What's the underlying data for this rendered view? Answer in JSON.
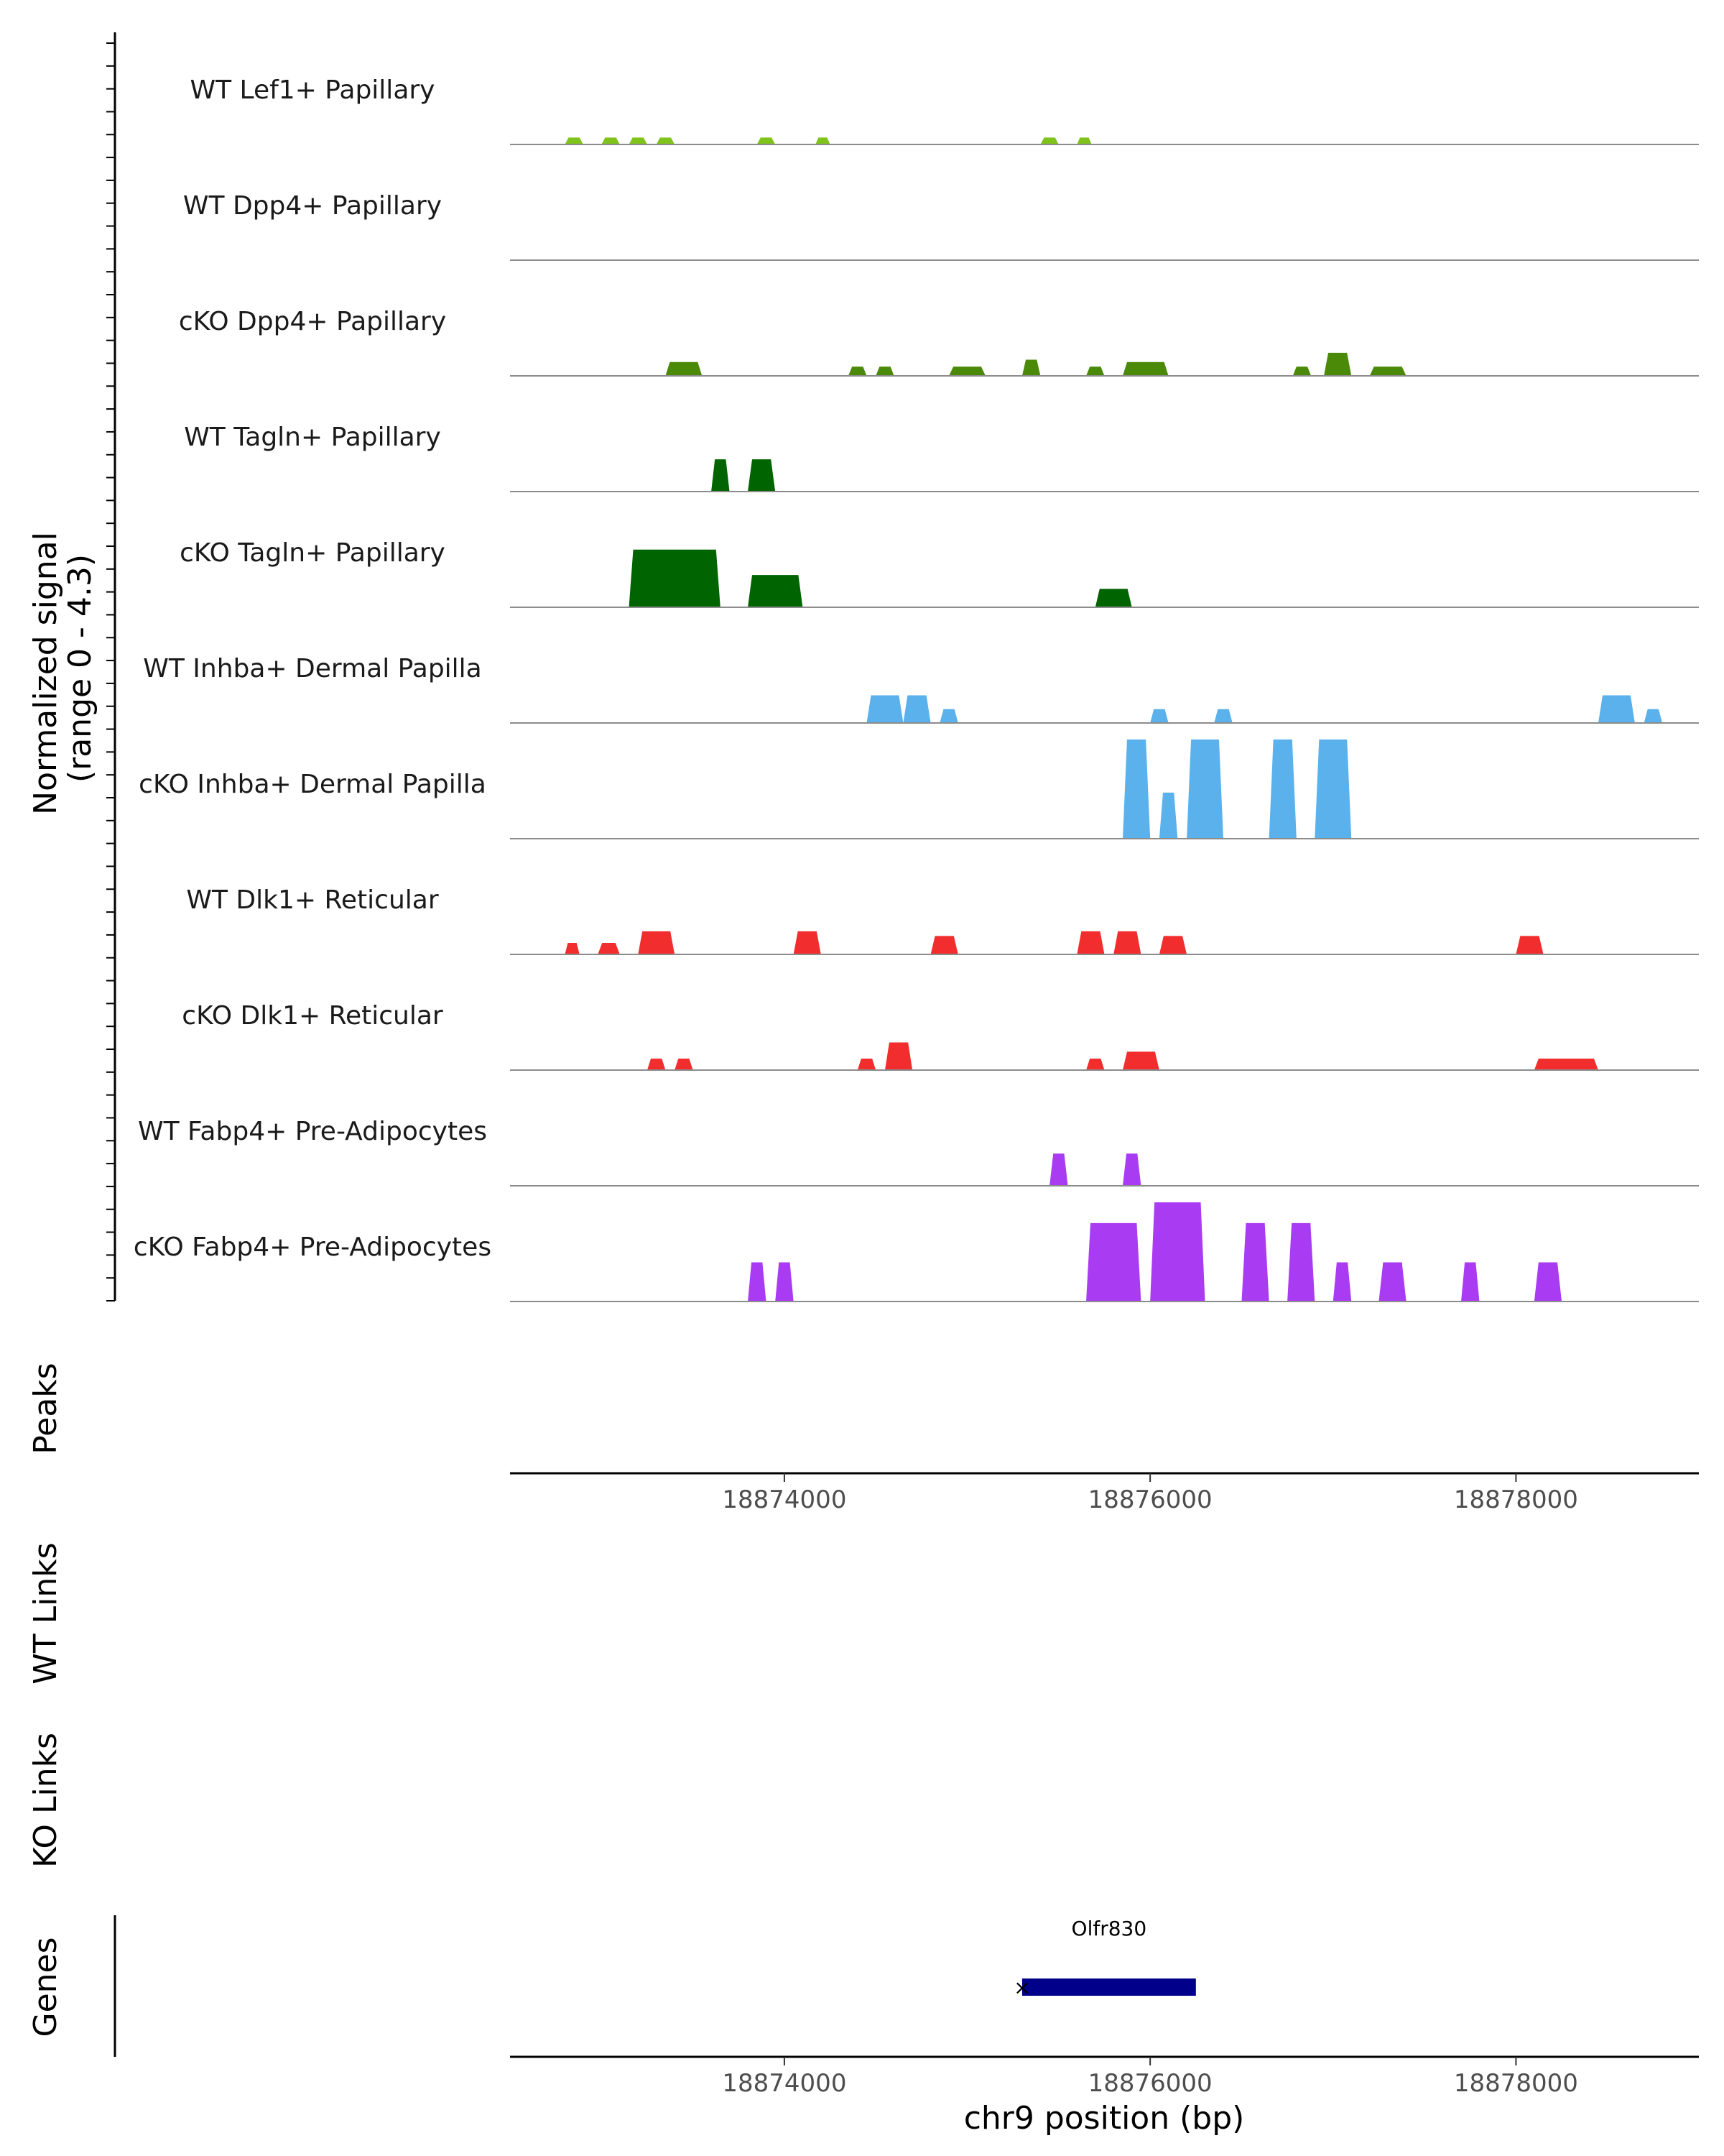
{
  "chart_data": {
    "type": "area",
    "region": "chr9",
    "x_range": [
      18872500,
      18879000
    ],
    "signal_axis": {
      "title_line1": "Normalized signal",
      "title_line2": "(range 0 - 4.3)",
      "ylim": [
        0,
        4.3
      ]
    },
    "tracks": [
      {
        "name": "WT Lef1+ Papillary",
        "color": "#7fc31c",
        "peaks": [
          {
            "start": 18872800,
            "end": 18872900,
            "height": 0.3
          },
          {
            "start": 18873000,
            "end": 18873100,
            "height": 0.3
          },
          {
            "start": 18873150,
            "end": 18873250,
            "height": 0.3
          },
          {
            "start": 18873300,
            "end": 18873400,
            "height": 0.3
          },
          {
            "start": 18873850,
            "end": 18873950,
            "height": 0.3
          },
          {
            "start": 18874170,
            "end": 18874250,
            "height": 0.3
          },
          {
            "start": 18875400,
            "end": 18875500,
            "height": 0.3
          },
          {
            "start": 18875600,
            "end": 18875680,
            "height": 0.3
          }
        ]
      },
      {
        "name": "WT Dpp4+ Papillary",
        "color": "#7fc31c",
        "peaks": []
      },
      {
        "name": "cKO Dpp4+ Papillary",
        "color": "#4b8a08",
        "peaks": [
          {
            "start": 18873350,
            "end": 18873550,
            "height": 0.6
          },
          {
            "start": 18874350,
            "end": 18874450,
            "height": 0.4
          },
          {
            "start": 18874500,
            "end": 18874600,
            "height": 0.4
          },
          {
            "start": 18874900,
            "end": 18875100,
            "height": 0.4
          },
          {
            "start": 18875300,
            "end": 18875400,
            "height": 0.7
          },
          {
            "start": 18875650,
            "end": 18875750,
            "height": 0.4
          },
          {
            "start": 18875850,
            "end": 18876100,
            "height": 0.6
          },
          {
            "start": 18876780,
            "end": 18876880,
            "height": 0.4
          },
          {
            "start": 18876950,
            "end": 18877100,
            "height": 1.0
          },
          {
            "start": 18877200,
            "end": 18877400,
            "height": 0.4
          }
        ]
      },
      {
        "name": "WT Tagln+ Papillary",
        "color": "#006400",
        "peaks": [
          {
            "start": 18873600,
            "end": 18873700,
            "height": 1.4
          },
          {
            "start": 18873800,
            "end": 18873950,
            "height": 1.4
          }
        ]
      },
      {
        "name": "cKO Tagln+ Papillary",
        "color": "#006400",
        "peaks": [
          {
            "start": 18873150,
            "end": 18873650,
            "height": 2.5
          },
          {
            "start": 18873800,
            "end": 18874100,
            "height": 1.4
          },
          {
            "start": 18875700,
            "end": 18875900,
            "height": 0.8
          }
        ]
      },
      {
        "name": "WT Inhba+ Dermal Papilla",
        "color": "#5ab1ec",
        "peaks": [
          {
            "start": 18874450,
            "end": 18874650,
            "height": 1.2
          },
          {
            "start": 18874650,
            "end": 18874800,
            "height": 1.2
          },
          {
            "start": 18874850,
            "end": 18874950,
            "height": 0.6
          },
          {
            "start": 18876000,
            "end": 18876100,
            "height": 0.6
          },
          {
            "start": 18876350,
            "end": 18876450,
            "height": 0.6
          },
          {
            "start": 18878450,
            "end": 18878650,
            "height": 1.2
          },
          {
            "start": 18878700,
            "end": 18878800,
            "height": 0.6
          }
        ]
      },
      {
        "name": "cKO Inhba+ Dermal Papilla",
        "color": "#5ab1ec",
        "peaks": [
          {
            "start": 18875850,
            "end": 18876000,
            "height": 4.3
          },
          {
            "start": 18876050,
            "end": 18876150,
            "height": 2.0
          },
          {
            "start": 18876200,
            "end": 18876400,
            "height": 4.3
          },
          {
            "start": 18876650,
            "end": 18876800,
            "height": 4.3
          },
          {
            "start": 18876900,
            "end": 18877100,
            "height": 4.3
          }
        ]
      },
      {
        "name": "WT Dlk1+ Reticular",
        "color": "#f22d2d",
        "peaks": [
          {
            "start": 18872800,
            "end": 18872880,
            "height": 0.5
          },
          {
            "start": 18872980,
            "end": 18873100,
            "height": 0.5
          },
          {
            "start": 18873200,
            "end": 18873400,
            "height": 1.0
          },
          {
            "start": 18874050,
            "end": 18874200,
            "height": 1.0
          },
          {
            "start": 18874800,
            "end": 18874950,
            "height": 0.8
          },
          {
            "start": 18875600,
            "end": 18875750,
            "height": 1.0
          },
          {
            "start": 18875800,
            "end": 18875950,
            "height": 1.0
          },
          {
            "start": 18876050,
            "end": 18876200,
            "height": 0.8
          },
          {
            "start": 18878000,
            "end": 18878150,
            "height": 0.8
          }
        ]
      },
      {
        "name": "cKO Dlk1+ Reticular",
        "color": "#f22d2d",
        "peaks": [
          {
            "start": 18873250,
            "end": 18873350,
            "height": 0.5
          },
          {
            "start": 18873400,
            "end": 18873500,
            "height": 0.5
          },
          {
            "start": 18874400,
            "end": 18874500,
            "height": 0.5
          },
          {
            "start": 18874550,
            "end": 18874700,
            "height": 1.2
          },
          {
            "start": 18875650,
            "end": 18875750,
            "height": 0.5
          },
          {
            "start": 18875850,
            "end": 18876050,
            "height": 0.8
          },
          {
            "start": 18878100,
            "end": 18878450,
            "height": 0.5
          }
        ]
      },
      {
        "name": "WT Fabp4+ Pre-Adipocytes",
        "color": "#a93cf2",
        "peaks": [
          {
            "start": 18875450,
            "end": 18875550,
            "height": 1.4
          },
          {
            "start": 18875850,
            "end": 18875950,
            "height": 1.4
          }
        ]
      },
      {
        "name": "cKO Fabp4+ Pre-Adipocytes",
        "color": "#a93cf2",
        "peaks": [
          {
            "start": 18873800,
            "end": 18873900,
            "height": 1.7
          },
          {
            "start": 18873950,
            "end": 18874050,
            "height": 1.7
          },
          {
            "start": 18875650,
            "end": 18875950,
            "height": 3.4
          },
          {
            "start": 18876000,
            "end": 18876300,
            "height": 4.3
          },
          {
            "start": 18876500,
            "end": 18876650,
            "height": 3.4
          },
          {
            "start": 18876750,
            "end": 18876900,
            "height": 3.4
          },
          {
            "start": 18877000,
            "end": 18877100,
            "height": 1.7
          },
          {
            "start": 18877250,
            "end": 18877400,
            "height": 1.7
          },
          {
            "start": 18877700,
            "end": 18877800,
            "height": 1.7
          },
          {
            "start": 18878100,
            "end": 18878250,
            "height": 1.7
          }
        ]
      }
    ],
    "panels": {
      "peaks": "Peaks",
      "wt_links": "WT Links",
      "ko_links": "KO Links",
      "genes": "Genes"
    },
    "x_ticks": [
      18874000,
      18876000,
      18878000
    ],
    "x_tick_labels": [
      "18874000",
      "18876000",
      "18878000"
    ],
    "xlabel": "chr9 position (bp)",
    "gene": {
      "name": "Olfr830",
      "start": 18875300,
      "end": 18876250,
      "strand": "-",
      "color": "#00008b"
    }
  }
}
